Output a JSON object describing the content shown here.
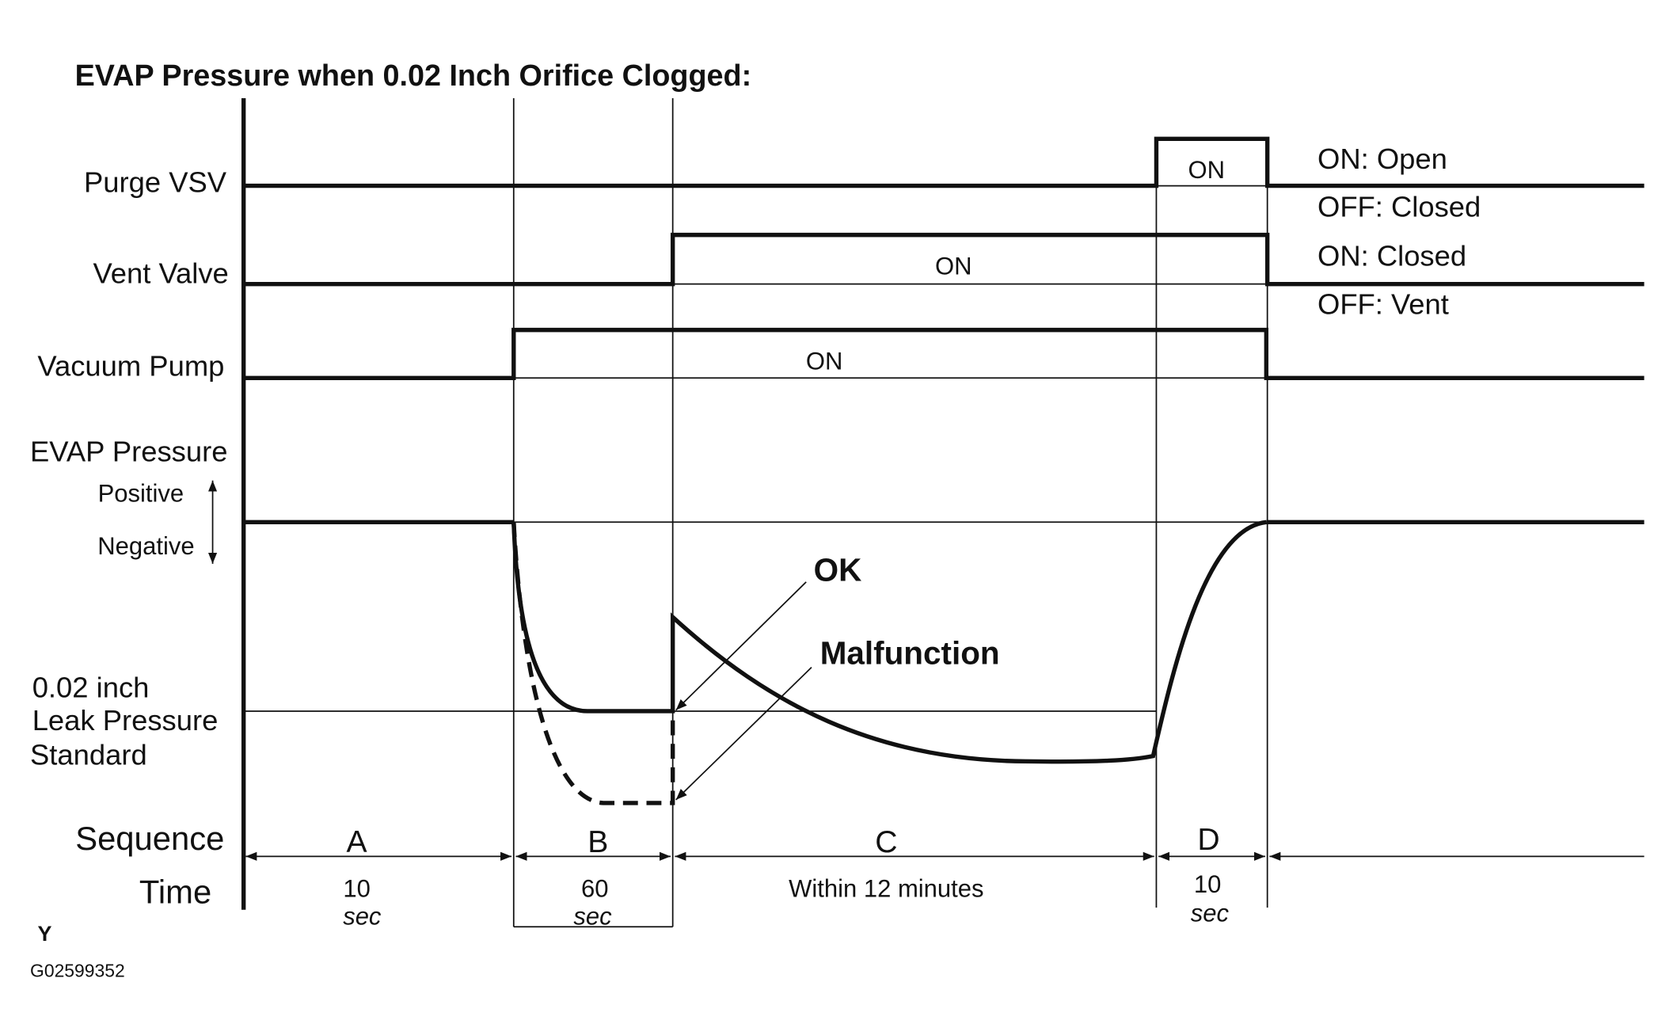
{
  "title": "EVAP Pressure when 0.02 Inch Orifice Clogged:",
  "signals": [
    {
      "label": "Purge VSV",
      "on": "ON",
      "states": [
        "ON: Open",
        "OFF: Closed"
      ]
    },
    {
      "label": "Vent Valve",
      "on": "ON",
      "states": [
        "ON: Closed",
        "OFF: Vent"
      ]
    },
    {
      "label": "Vacuum Pump",
      "on": "ON"
    }
  ],
  "pressure": {
    "label": "EVAP Pressure",
    "positive": "Positive",
    "negative": "Negative",
    "standard": [
      "0.02 inch",
      "Leak Pressure",
      "Standard"
    ],
    "ok": "OK",
    "malfunction": "Malfunction"
  },
  "sequence": {
    "label": "Sequence",
    "time_label": "Time",
    "steps": [
      {
        "name": "A",
        "time": [
          "10",
          "sec"
        ]
      },
      {
        "name": "B",
        "time": [
          "60",
          "sec"
        ]
      },
      {
        "name": "C",
        "time": [
          "Within 12 minutes"
        ]
      },
      {
        "name": "D",
        "time": [
          "10",
          "sec"
        ]
      }
    ]
  },
  "footer": {
    "mark": "Y",
    "code": "G02599352"
  }
}
